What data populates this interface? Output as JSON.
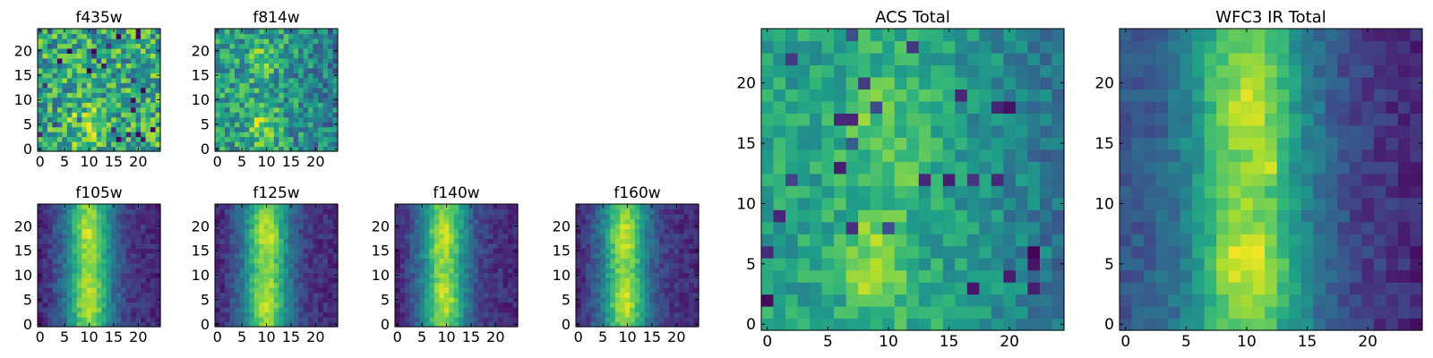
{
  "figure": {
    "background": "#ffffff",
    "colormap": "viridis",
    "colormap_stops": [
      "#440154",
      "#3b528b",
      "#21918c",
      "#5ec962",
      "#fde725"
    ]
  },
  "chart_data": [
    {
      "type": "heatmap",
      "title": "f435w",
      "grid_shape": [
        25,
        25
      ],
      "source_position": {
        "x": 9,
        "y": 5
      },
      "xlim": [
        -0.5,
        24.5
      ],
      "ylim": [
        -0.5,
        24.5
      ],
      "xticks": [
        0,
        5,
        10,
        15,
        20
      ],
      "yticks": [
        0,
        5,
        10,
        15,
        20
      ],
      "grid": false,
      "dominant_color": "#5ec962",
      "noise": "high"
    },
    {
      "type": "heatmap",
      "title": "f814w",
      "grid_shape": [
        25,
        25
      ],
      "source_positions": [
        {
          "x": 9,
          "y": 5
        },
        {
          "x": 9,
          "y": 18
        }
      ],
      "xlim": [
        -0.5,
        24.5
      ],
      "ylim": [
        -0.5,
        24.5
      ],
      "xticks": [
        0,
        5,
        10,
        15,
        20
      ],
      "yticks": [
        0,
        5,
        10,
        15,
        20
      ],
      "grid": false,
      "dominant_color": "#5ec962",
      "noise": "high"
    },
    {
      "type": "heatmap",
      "title": "f105w",
      "grid_shape": [
        25,
        25
      ],
      "source_positions": [
        {
          "x": 10,
          "y": 5
        },
        {
          "x": 10,
          "y": 18
        }
      ],
      "xlim": [
        -0.5,
        24.5
      ],
      "ylim": [
        -0.5,
        24.5
      ],
      "xticks": [
        0,
        5,
        10,
        15,
        20
      ],
      "yticks": [
        0,
        5,
        10,
        15,
        20
      ],
      "grid": false,
      "noise": "low"
    },
    {
      "type": "heatmap",
      "title": "f125w",
      "grid_shape": [
        25,
        25
      ],
      "source_positions": [
        {
          "x": 10,
          "y": 5
        },
        {
          "x": 10,
          "y": 18
        }
      ],
      "xlim": [
        -0.5,
        24.5
      ],
      "ylim": [
        -0.5,
        24.5
      ],
      "xticks": [
        0,
        5,
        10,
        15,
        20
      ],
      "yticks": [
        0,
        5,
        10,
        15,
        20
      ],
      "grid": false,
      "noise": "low"
    },
    {
      "type": "heatmap",
      "title": "f140w",
      "grid_shape": [
        25,
        25
      ],
      "source_positions": [
        {
          "x": 9,
          "y": 5
        },
        {
          "x": 9,
          "y": 18
        }
      ],
      "xlim": [
        -0.5,
        24.5
      ],
      "ylim": [
        -0.5,
        24.5
      ],
      "xticks": [
        0,
        5,
        10,
        15,
        20
      ],
      "yticks": [
        0,
        5,
        10,
        15,
        20
      ],
      "grid": false,
      "noise": "low"
    },
    {
      "type": "heatmap",
      "title": "f160w",
      "grid_shape": [
        25,
        25
      ],
      "source_positions": [
        {
          "x": 9,
          "y": 5
        },
        {
          "x": 9,
          "y": 18
        }
      ],
      "xlim": [
        -0.5,
        24.5
      ],
      "ylim": [
        -0.5,
        24.5
      ],
      "xticks": [
        0,
        5,
        10,
        15,
        20
      ],
      "yticks": [
        0,
        5,
        10,
        15,
        20
      ],
      "grid": false,
      "noise": "low"
    },
    {
      "type": "heatmap",
      "title": "ACS Total",
      "grid_shape": [
        25,
        25
      ],
      "source_position": {
        "x": 9,
        "y": 5
      },
      "secondary_source": {
        "x": 12,
        "y": 13
      },
      "xlim": [
        -0.5,
        24.5
      ],
      "ylim": [
        -0.5,
        24.5
      ],
      "xticks": [
        0,
        5,
        10,
        15,
        20
      ],
      "yticks": [
        0,
        5,
        10,
        15,
        20
      ],
      "grid": false,
      "dominant_color": "#5ec962",
      "noise": "high"
    },
    {
      "type": "heatmap",
      "title": "WFC3 IR Total",
      "grid_shape": [
        25,
        25
      ],
      "source_positions": [
        {
          "x": 10,
          "y": 5
        },
        {
          "x": 10,
          "y": 18
        }
      ],
      "secondary_source": {
        "x": 12,
        "y": 13
      },
      "xlim": [
        -0.5,
        24.5
      ],
      "ylim": [
        -0.5,
        24.5
      ],
      "xticks": [
        0,
        5,
        10,
        15,
        20
      ],
      "yticks": [
        0,
        5,
        10,
        15,
        20
      ],
      "grid": false,
      "noise": "low"
    }
  ]
}
